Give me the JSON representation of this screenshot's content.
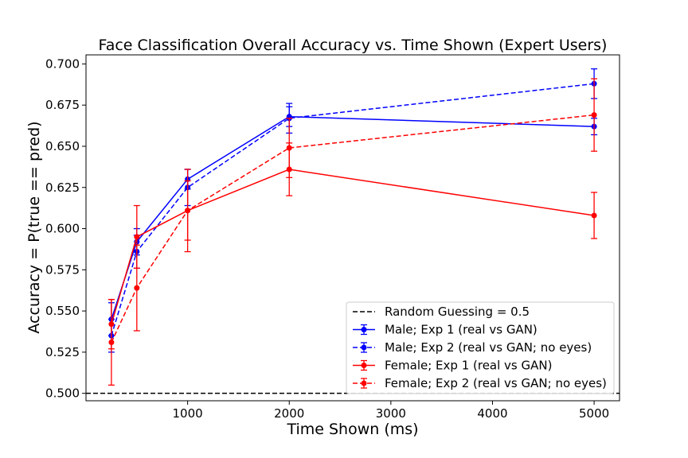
{
  "chart_data": {
    "type": "line",
    "title": "Face Classification Overall Accuracy vs. Time Shown (Expert Users)",
    "xlabel": "Time Shown (ms)",
    "ylabel": "Accuracy = P(true == pred)",
    "xlim": [
      0,
      5250
    ],
    "ylim": [
      0.4955,
      0.7055
    ],
    "xticks": [
      1000,
      2000,
      3000,
      4000,
      5000
    ],
    "xtick_labels": [
      "1000",
      "2000",
      "3000",
      "4000",
      "5000"
    ],
    "yticks": [
      0.5,
      0.525,
      0.55,
      0.575,
      0.6,
      0.625,
      0.65,
      0.675,
      0.7
    ],
    "ytick_labels": [
      "0.500",
      "0.525",
      "0.550",
      "0.575",
      "0.600",
      "0.625",
      "0.650",
      "0.675",
      "0.700"
    ],
    "grid": false,
    "legend_position": "lower-right",
    "reference_line": {
      "label": "Random Guessing = 0.5",
      "y": 0.5,
      "color": "#000000",
      "style": "dashed"
    },
    "series": [
      {
        "name": "Male; Exp 1 (real vs GAN)",
        "color": "#0000ff",
        "style": "solid",
        "x": [
          250,
          500,
          1000,
          2000,
          5000
        ],
        "y": [
          0.545,
          0.592,
          0.63,
          0.668,
          0.662
        ],
        "err": [
          0.01,
          0.008,
          0.006,
          0.006,
          0.005
        ]
      },
      {
        "name": "Male; Exp 2 (real vs GAN; no eyes)",
        "color": "#0000ff",
        "style": "dashed",
        "x": [
          250,
          500,
          1000,
          2000,
          5000
        ],
        "y": [
          0.535,
          0.586,
          0.625,
          0.667,
          0.688
        ],
        "err": [
          0.01,
          0.01,
          0.011,
          0.009,
          0.009
        ]
      },
      {
        "name": "Female; Exp 1 (real vs GAN)",
        "color": "#ff0000",
        "style": "solid",
        "x": [
          250,
          500,
          1000,
          2000,
          5000
        ],
        "y": [
          0.542,
          0.595,
          0.611,
          0.636,
          0.608
        ],
        "err": [
          0.015,
          0.019,
          0.018,
          0.016,
          0.014
        ]
      },
      {
        "name": "Female; Exp 2 (real vs GAN; no eyes)",
        "color": "#ff0000",
        "style": "dashed",
        "x": [
          250,
          500,
          1000,
          2000,
          5000
        ],
        "y": [
          0.531,
          0.564,
          0.611,
          0.649,
          0.669
        ],
        "err": [
          0.026,
          0.026,
          0.025,
          0.018,
          0.022
        ]
      }
    ]
  }
}
